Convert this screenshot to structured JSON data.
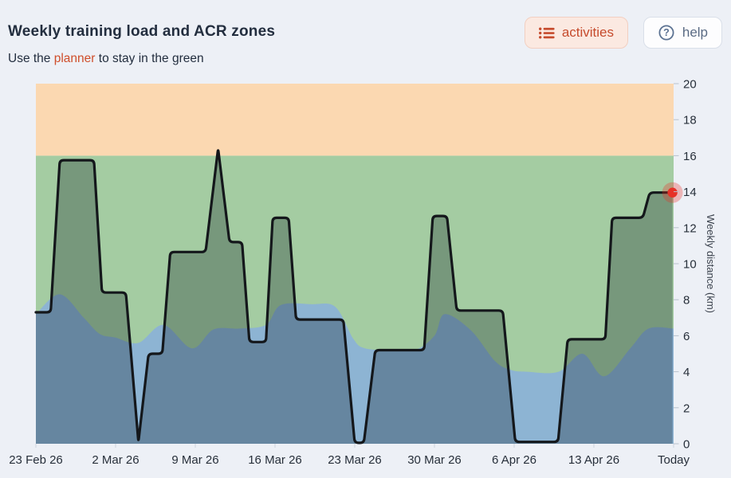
{
  "header": {
    "title": "Weekly training load and ACR zones",
    "subtitle": {
      "prefix": "Use the ",
      "link": "planner",
      "suffix": " to stay in the green"
    },
    "buttons": {
      "activities": "activities",
      "help": "help"
    },
    "icons": {
      "activities": "list-icon",
      "help": "question-circle-icon"
    }
  },
  "colors": {
    "page_bg": "#edf0f6",
    "heading_text": "#232e3f",
    "accent_orange": "#cf4e2b",
    "activities_btn": {
      "bg": "#fbe9e1",
      "border": "#f2cfc1",
      "text": "#c64b2d"
    },
    "help_btn": {
      "bg": "#fdfdfe",
      "border": "#d9dfe9",
      "text": "#5a6b84"
    }
  },
  "chart_data": {
    "type": "area",
    "title": "Weekly training load and ACR zones",
    "xlabel": "",
    "ylabel": "Weekly distance (km)",
    "ylim": [
      0,
      20
    ],
    "y_ticks": [
      0,
      2,
      4,
      6,
      8,
      10,
      12,
      14,
      16,
      18,
      20
    ],
    "y_axis_side": "right",
    "grid": false,
    "legend": false,
    "x_ticks": [
      {
        "day": 0,
        "label": "23 Feb 26"
      },
      {
        "day": 7,
        "label": "2 Mar 26"
      },
      {
        "day": 14,
        "label": "9 Mar 26"
      },
      {
        "day": 21,
        "label": "16 Mar 26"
      },
      {
        "day": 28,
        "label": "23 Mar 26"
      },
      {
        "day": 35,
        "label": "30 Mar 26"
      },
      {
        "day": 42,
        "label": "6 Apr 26"
      },
      {
        "day": 49,
        "label": "13 Apr 26"
      },
      {
        "day": 56,
        "label": "Today"
      }
    ],
    "zones": {
      "above_optimal": {
        "from_km": 16,
        "to_km": 20,
        "color": "#fbd8b1"
      },
      "optimal": {
        "from": "acr_lower_boundary",
        "to_km": 16,
        "color": "#a4cca2"
      },
      "below_optimal": {
        "from_km": 0,
        "to": "acr_lower_boundary",
        "color": "#8db4d3"
      }
    },
    "axis_style": {
      "tick_color": "#b9c2cd",
      "label_color": "#272f3a",
      "title_color": "#3c434e"
    },
    "series": [
      {
        "name": "acr_lower_boundary",
        "type": "smooth_area",
        "color": "#8db4d3",
        "points_day_km": [
          [
            0,
            7.2
          ],
          [
            2.1,
            8.3
          ],
          [
            4.2,
            7.0
          ],
          [
            5.6,
            6.1
          ],
          [
            7.0,
            5.9
          ],
          [
            9.0,
            5.6
          ],
          [
            11.2,
            6.6
          ],
          [
            13.7,
            5.3
          ],
          [
            15.6,
            6.35
          ],
          [
            17.9,
            6.4
          ],
          [
            20.2,
            6.6
          ],
          [
            21.5,
            7.7
          ],
          [
            24.2,
            7.75
          ],
          [
            26.3,
            7.6
          ],
          [
            27.9,
            5.8
          ],
          [
            28.9,
            5.3
          ],
          [
            31.2,
            5.2
          ],
          [
            33.3,
            5.2
          ],
          [
            35.0,
            6.0
          ],
          [
            35.9,
            7.2
          ],
          [
            38.2,
            6.3
          ],
          [
            40.3,
            4.6
          ],
          [
            41.7,
            4.1
          ],
          [
            43.1,
            4.0
          ],
          [
            45.9,
            4.0
          ],
          [
            48.0,
            5.0
          ],
          [
            49.9,
            3.75
          ],
          [
            52.2,
            5.3
          ],
          [
            53.8,
            6.4
          ],
          [
            56,
            6.4
          ]
        ]
      },
      {
        "name": "weekly_distance",
        "type": "step_line",
        "color": "#14171b",
        "width": 3.2,
        "under_fill": "rgba(0,12,24,0.27)",
        "points_day_km": [
          [
            0,
            7.3
          ],
          [
            1.3,
            7.3
          ],
          [
            2.1,
            15.75
          ],
          [
            5.1,
            15.75
          ],
          [
            5.8,
            8.4
          ],
          [
            7.9,
            8.4
          ],
          [
            9.0,
            0.1
          ],
          [
            9.9,
            5.0
          ],
          [
            11.1,
            5.0
          ],
          [
            11.8,
            10.65
          ],
          [
            14.9,
            10.65
          ],
          [
            16.0,
            16.4
          ],
          [
            17.0,
            11.2
          ],
          [
            18.1,
            11.2
          ],
          [
            18.75,
            5.65
          ],
          [
            20.2,
            5.65
          ],
          [
            20.8,
            12.55
          ],
          [
            22.2,
            12.55
          ],
          [
            22.85,
            6.9
          ],
          [
            27.0,
            6.9
          ],
          [
            28.0,
            0.05
          ],
          [
            28.8,
            0.05
          ],
          [
            29.8,
            5.2
          ],
          [
            34.1,
            5.2
          ],
          [
            34.85,
            12.65
          ],
          [
            36.1,
            12.65
          ],
          [
            36.95,
            7.4
          ],
          [
            41.0,
            7.4
          ],
          [
            42.1,
            0.1
          ],
          [
            45.85,
            0.1
          ],
          [
            46.7,
            5.8
          ],
          [
            50.0,
            5.8
          ],
          [
            50.6,
            12.55
          ],
          [
            53.3,
            12.55
          ],
          [
            53.9,
            13.95
          ],
          [
            55.9,
            13.95
          ]
        ],
        "end_marker": {
          "day": 55.9,
          "km": 13.95,
          "color": "#e63228",
          "halo": "rgba(235,45,38,0.3)"
        }
      }
    ]
  }
}
